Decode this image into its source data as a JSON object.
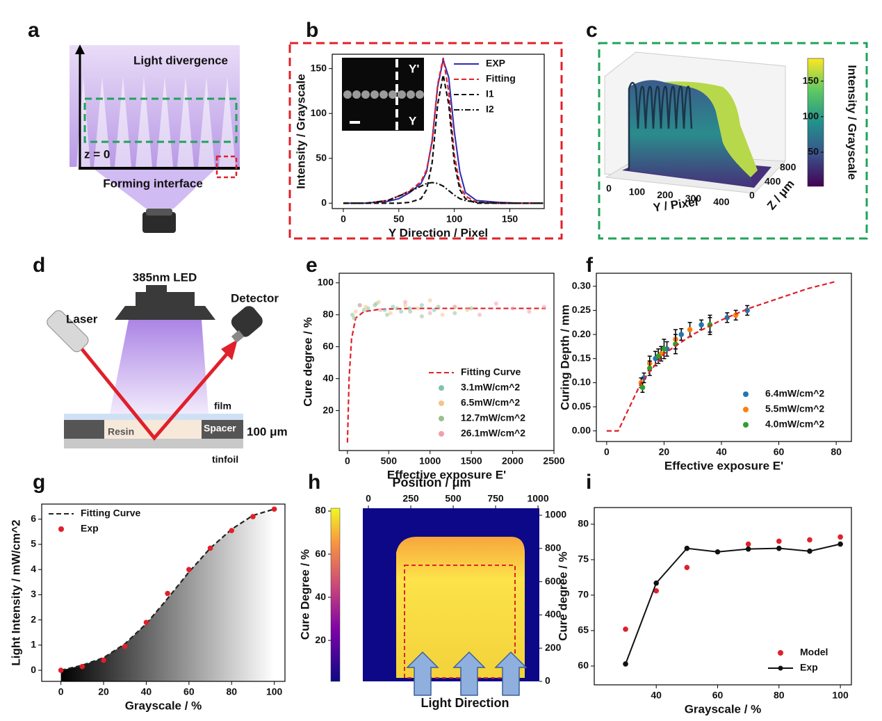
{
  "panels": [
    "a",
    "b",
    "c",
    "d",
    "e",
    "f",
    "g",
    "h",
    "i"
  ],
  "diagram_a": {
    "top_label": "Light divergence",
    "origin_label": "z = 0",
    "bottom_label": "Forming interface"
  },
  "diagram_d": {
    "source": "385nm LED",
    "laser": "Laser",
    "detector": "Detector",
    "film": "film",
    "resin": "Resin",
    "spacer": "Spacer",
    "thickness": "100 μm",
    "substrate": "tinfoil"
  },
  "chart_data": [
    {
      "type": "line",
      "xlabel": "Y Direction / Pixel",
      "ylabel": "Intensity / Grayscale",
      "xlim": [
        -10,
        181
      ],
      "xticks": [
        0,
        50,
        100,
        150
      ],
      "ylim": [
        -6,
        166
      ],
      "yticks": [
        0,
        50,
        100,
        150
      ],
      "legend": "upper right",
      "inset_labels": [
        "Y'",
        "Y"
      ],
      "x": [
        0,
        20,
        40,
        50,
        60,
        70,
        75,
        80,
        85,
        90,
        95,
        100,
        105,
        110,
        120,
        140,
        160,
        180
      ],
      "series": [
        {
          "name": "EXP",
          "color": "#2b2bb0",
          "mark": "line",
          "style": "solid",
          "values": [
            0,
            0,
            2,
            5,
            12,
            22,
            35,
            70,
            130,
            160,
            140,
            80,
            35,
            12,
            3,
            1,
            0,
            0
          ]
        },
        {
          "name": "Fitting",
          "color": "#e0202a",
          "mark": "line",
          "style": "dashed",
          "values": [
            0,
            0,
            3,
            8,
            14,
            24,
            37,
            68,
            132,
            162,
            124,
            54,
            20,
            8,
            1,
            0,
            0,
            0
          ]
        },
        {
          "name": "I1",
          "color": "#111111",
          "mark": "line",
          "style": "dashed",
          "values": [
            0,
            0,
            0,
            0,
            1,
            5,
            15,
            45,
            110,
            143,
            110,
            45,
            15,
            5,
            0,
            0,
            0,
            0
          ]
        },
        {
          "name": "I2",
          "color": "#111111",
          "mark": "line",
          "style": "dashdot",
          "values": [
            0,
            0,
            3,
            8,
            13,
            19,
            22,
            23,
            22,
            19,
            14,
            9,
            5,
            3,
            1,
            0,
            0,
            0
          ]
        }
      ]
    },
    {
      "type": "surface3d",
      "xlabel": "Y / Pixel",
      "ylabel": "Z / μm",
      "xlim": [
        0,
        420
      ],
      "xticks": [
        0,
        100,
        200,
        300,
        400
      ],
      "ylim": [
        0,
        1000
      ],
      "yticks": [
        0,
        400,
        800
      ],
      "clabel": "Intensity / Grayscale",
      "clim": [
        2,
        182
      ],
      "cticks": [
        50,
        100,
        150
      ]
    },
    {
      "type": "scatter",
      "xlabel": "Effective exposure E'",
      "ylabel": "Cure degree / %",
      "xlim": [
        -100,
        2500
      ],
      "xticks": [
        0,
        500,
        1000,
        1500,
        2000,
        2500
      ],
      "ylim": [
        -5,
        106
      ],
      "yticks": [
        20,
        40,
        60,
        80,
        100
      ],
      "legend": "lower right",
      "series": [
        {
          "name": "Fitting Curve",
          "color": "#e0202a",
          "mark": "line",
          "style": "dashed",
          "x": [
            0,
            20,
            50,
            100,
            200,
            400,
            800,
            1600,
            2400
          ],
          "values": [
            0,
            40,
            65,
            78,
            82,
            83.5,
            84,
            84,
            84
          ]
        },
        {
          "name": "3.1mW/cm^2",
          "color": "#7cc4b0",
          "mark": "points",
          "x": [
            60,
            150,
            250,
            350,
            450,
            550,
            650,
            750,
            900,
            1050
          ],
          "values": [
            80,
            86,
            84,
            87,
            83,
            85,
            82,
            84,
            86,
            83
          ]
        },
        {
          "name": "6.5mW/cm^2",
          "color": "#f2c48a",
          "mark": "points",
          "x": [
            100,
            220,
            380,
            520,
            700,
            850,
            1000,
            1150,
            1300,
            1450
          ],
          "values": [
            82,
            85,
            88,
            81,
            86,
            84,
            89,
            80,
            85,
            83
          ]
        },
        {
          "name": "12.7mW/cm^2",
          "color": "#9bbf8f",
          "mark": "points",
          "x": [
            80,
            200,
            330,
            480,
            600,
            760,
            900,
            1100,
            1300,
            1500
          ],
          "values": [
            78,
            83,
            86,
            80,
            84,
            82,
            79,
            85,
            81,
            84
          ]
        },
        {
          "name": "26.1mW/cm^2",
          "color": "#f0a0a8",
          "mark": "points",
          "x": [
            150,
            400,
            700,
            1000,
            1300,
            1600,
            1800,
            2000,
            2200,
            2380
          ],
          "values": [
            86,
            83,
            88,
            81,
            85,
            80,
            87,
            84,
            82,
            85
          ]
        }
      ]
    },
    {
      "type": "scatter",
      "xlabel": "Effective exposure E'",
      "ylabel": "Curing Depth / mm",
      "xlim": [
        -3.6,
        85.3
      ],
      "xticks": [
        0,
        20,
        40,
        60,
        80
      ],
      "ylim": [
        -0.022,
        0.327
      ],
      "yticks": [
        {
          "value": 0,
          "label": "0.00"
        },
        0.05,
        {
          "value": 0.1,
          "label": "0.10"
        },
        0.15,
        {
          "value": 0.2,
          "label": "0.20"
        },
        0.25,
        {
          "value": 0.3,
          "label": "0.30"
        }
      ],
      "legend": "lower right",
      "series": [
        {
          "name": "6.4mW/cm^2",
          "color": "#1f77b4",
          "mark": "points",
          "x": [
            13,
            17,
            21,
            26,
            33,
            42,
            49
          ],
          "values": [
            0.11,
            0.15,
            0.17,
            0.2,
            0.22,
            0.235,
            0.25
          ],
          "errors": [
            0.01,
            0.015,
            0.015,
            0.012,
            0.01,
            0.01,
            0.01
          ]
        },
        {
          "name": "5.5mW/cm^2",
          "color": "#ff7f0e",
          "mark": "points",
          "x": [
            12,
            15,
            19,
            24,
            29,
            36,
            45
          ],
          "values": [
            0.1,
            0.14,
            0.16,
            0.19,
            0.21,
            0.22,
            0.24
          ],
          "errors": [
            0.01,
            0.015,
            0.015,
            0.02,
            0.015,
            0.015,
            0.01
          ]
        },
        {
          "name": "4.0mW/cm^2",
          "color": "#2ca02c",
          "mark": "points",
          "x": [
            12.5,
            15,
            18,
            20,
            24,
            36
          ],
          "values": [
            0.09,
            0.13,
            0.155,
            0.17,
            0.18,
            0.22
          ],
          "errors": [
            0.01,
            0.015,
            0.015,
            0.02,
            0.02,
            0.02
          ]
        },
        {
          "name": null,
          "color": "#e0202a",
          "mark": "line",
          "style": "dashed",
          "x": [
            0,
            4,
            8,
            12,
            20,
            30,
            40,
            50,
            60,
            70,
            80
          ],
          "values": [
            0,
            0,
            0.05,
            0.1,
            0.16,
            0.2,
            0.23,
            0.255,
            0.275,
            0.295,
            0.31
          ]
        }
      ]
    },
    {
      "type": "scatter",
      "xlabel": "Grayscale / %",
      "ylabel": "Light Intensity / mW/cm^2",
      "xlim": [
        -9,
        105
      ],
      "xticks": [
        0,
        20,
        40,
        60,
        80,
        100
      ],
      "ylim": [
        -0.44,
        6.6
      ],
      "yticks": [
        0,
        1,
        2,
        3,
        4,
        5,
        6
      ],
      "legend": "upper left",
      "series": [
        {
          "name": "Fitting Curve",
          "color": "#222222",
          "mark": "line",
          "style": "dashed",
          "area": true,
          "x": [
            0,
            10,
            20,
            30,
            40,
            50,
            60,
            70,
            80,
            90,
            100
          ],
          "values": [
            0,
            0.2,
            0.5,
            1.05,
            1.85,
            2.85,
            3.9,
            4.85,
            5.6,
            6.15,
            6.4
          ]
        },
        {
          "name": "Exp",
          "color": "#e0202a",
          "mark": "points",
          "x": [
            0,
            10,
            20,
            30,
            40,
            50,
            60,
            70,
            80,
            90,
            100
          ],
          "values": [
            0,
            0.15,
            0.4,
            0.95,
            1.9,
            3.05,
            4.0,
            4.85,
            5.55,
            6.1,
            6.4
          ]
        }
      ]
    },
    {
      "type": "heatmap",
      "xlabel": "Position / μm",
      "xlim": [
        -33,
        1008
      ],
      "xticks": [
        0,
        250,
        500,
        750,
        1000
      ],
      "ylim": [
        0,
        1042
      ],
      "yticks": [
        0,
        200,
        400,
        600,
        800,
        1000
      ],
      "clabel": "Cure Degree / %",
      "clim": [
        1,
        81.3
      ],
      "cticks": [
        20,
        40,
        60,
        80
      ],
      "annotation": "Light Direction"
    },
    {
      "type": "scatter",
      "xlabel": "Grayscale / %",
      "ylabel": "Cure degree / %",
      "xlim": [
        19.8,
        103.6
      ],
      "xticks": [
        40,
        60,
        80,
        100
      ],
      "ylim": [
        57.35,
        82.35
      ],
      "yticks": [
        60,
        65,
        70,
        75,
        80
      ],
      "legend": "lower right",
      "series": [
        {
          "name": "Model",
          "color": "#e0202a",
          "mark": "points",
          "x": [
            30,
            40,
            50,
            70,
            80,
            90,
            100
          ],
          "values": [
            65.2,
            70.6,
            73.9,
            77.2,
            77.6,
            77.8,
            78.2
          ]
        },
        {
          "name": "Exp",
          "color": "#111111",
          "mark": "linepoints",
          "style": "solid",
          "x": [
            30,
            40,
            50,
            60,
            70,
            80,
            90,
            100
          ],
          "values": [
            60.3,
            71.7,
            76.6,
            76.1,
            76.5,
            76.6,
            76.2,
            77.2
          ]
        }
      ]
    }
  ]
}
